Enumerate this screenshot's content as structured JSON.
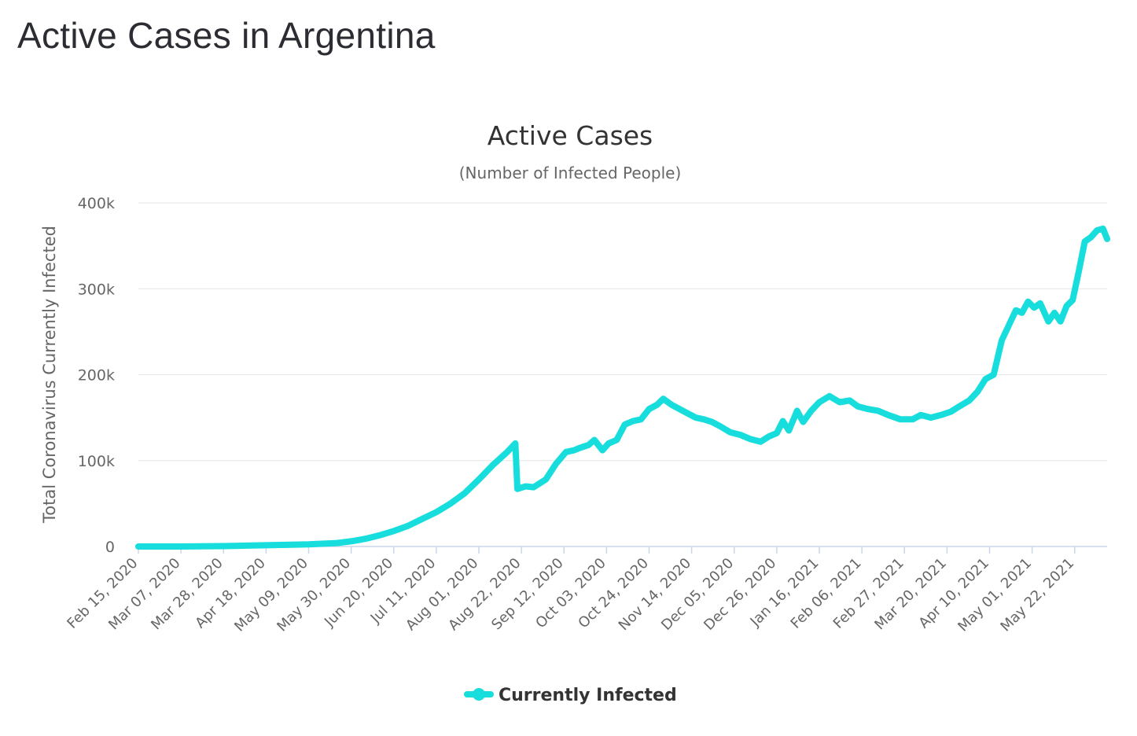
{
  "page": {
    "title": "Active Cases in Argentina"
  },
  "colors": {
    "series": "#17dddd",
    "grid": "#e6e6e6",
    "axis_line": "#ccd6eb",
    "text": "#333333",
    "muted_text": "#666666"
  },
  "chart_data": {
    "type": "line",
    "title": "Active Cases",
    "subtitle": "(Number of Infected People)",
    "xlabel": "",
    "ylabel": "Total Coronavirus Currently Infected",
    "ylim": [
      0,
      400000
    ],
    "y_ticks": [
      {
        "value": 0,
        "label": "0"
      },
      {
        "value": 100000,
        "label": "100k"
      },
      {
        "value": 200000,
        "label": "200k"
      },
      {
        "value": 300000,
        "label": "300k"
      },
      {
        "value": 400000,
        "label": "400k"
      }
    ],
    "x_start": "2020-02-15",
    "x_end": "2021-06-07",
    "x_tick_labels": [
      "Feb 15, 2020",
      "Mar 07, 2020",
      "Mar 28, 2020",
      "Apr 18, 2020",
      "May 09, 2020",
      "May 30, 2020",
      "Jun 20, 2020",
      "Jul 11, 2020",
      "Aug 01, 2020",
      "Aug 22, 2020",
      "Sep 12, 2020",
      "Oct 03, 2020",
      "Oct 24, 2020",
      "Nov 14, 2020",
      "Dec 05, 2020",
      "Dec 26, 2020",
      "Jan 16, 2021",
      "Feb 06, 2021",
      "Feb 27, 2021",
      "Mar 20, 2021",
      "Apr 10, 2021",
      "May 01, 2021",
      "May 22, 2021"
    ],
    "grid": true,
    "legend_position": "bottom-center",
    "series": [
      {
        "name": "Currently Infected",
        "points": [
          [
            "2020-02-15",
            0
          ],
          [
            "2020-03-07",
            0
          ],
          [
            "2020-03-28",
            500
          ],
          [
            "2020-04-18",
            1500
          ],
          [
            "2020-05-09",
            2500
          ],
          [
            "2020-05-23",
            4000
          ],
          [
            "2020-05-30",
            6000
          ],
          [
            "2020-06-06",
            9000
          ],
          [
            "2020-06-13",
            13000
          ],
          [
            "2020-06-20",
            18000
          ],
          [
            "2020-06-27",
            24000
          ],
          [
            "2020-07-04",
            32000
          ],
          [
            "2020-07-11",
            40000
          ],
          [
            "2020-07-18",
            50000
          ],
          [
            "2020-07-25",
            62000
          ],
          [
            "2020-08-01",
            78000
          ],
          [
            "2020-08-08",
            95000
          ],
          [
            "2020-08-15",
            110000
          ],
          [
            "2020-08-19",
            120000
          ],
          [
            "2020-08-20",
            67000
          ],
          [
            "2020-08-24",
            70000
          ],
          [
            "2020-08-28",
            69000
          ],
          [
            "2020-09-03",
            78000
          ],
          [
            "2020-09-08",
            96000
          ],
          [
            "2020-09-13",
            110000
          ],
          [
            "2020-09-17",
            112000
          ],
          [
            "2020-09-20",
            115000
          ],
          [
            "2020-09-24",
            118000
          ],
          [
            "2020-09-27",
            124000
          ],
          [
            "2020-10-01",
            112000
          ],
          [
            "2020-10-04",
            120000
          ],
          [
            "2020-10-08",
            124000
          ],
          [
            "2020-10-12",
            142000
          ],
          [
            "2020-10-16",
            146000
          ],
          [
            "2020-10-20",
            148000
          ],
          [
            "2020-10-24",
            160000
          ],
          [
            "2020-10-28",
            165000
          ],
          [
            "2020-10-31",
            172000
          ],
          [
            "2020-11-04",
            165000
          ],
          [
            "2020-11-08",
            160000
          ],
          [
            "2020-11-12",
            155000
          ],
          [
            "2020-11-16",
            150000
          ],
          [
            "2020-11-20",
            148000
          ],
          [
            "2020-11-24",
            145000
          ],
          [
            "2020-11-28",
            140000
          ],
          [
            "2020-12-03",
            133000
          ],
          [
            "2020-12-08",
            130000
          ],
          [
            "2020-12-13",
            125000
          ],
          [
            "2020-12-18",
            122000
          ],
          [
            "2020-12-22",
            128000
          ],
          [
            "2020-12-26",
            132000
          ],
          [
            "2020-12-29",
            146000
          ],
          [
            "2021-01-01",
            135000
          ],
          [
            "2021-01-05",
            158000
          ],
          [
            "2021-01-08",
            145000
          ],
          [
            "2021-01-12",
            158000
          ],
          [
            "2021-01-16",
            168000
          ],
          [
            "2021-01-21",
            175000
          ],
          [
            "2021-01-26",
            168000
          ],
          [
            "2021-01-31",
            170000
          ],
          [
            "2021-02-04",
            163000
          ],
          [
            "2021-02-09",
            160000
          ],
          [
            "2021-02-14",
            158000
          ],
          [
            "2021-02-19",
            153000
          ],
          [
            "2021-02-25",
            148000
          ],
          [
            "2021-03-03",
            148000
          ],
          [
            "2021-03-07",
            153000
          ],
          [
            "2021-03-12",
            150000
          ],
          [
            "2021-03-17",
            153000
          ],
          [
            "2021-03-22",
            157000
          ],
          [
            "2021-03-26",
            163000
          ],
          [
            "2021-03-31",
            170000
          ],
          [
            "2021-04-04",
            180000
          ],
          [
            "2021-04-08",
            195000
          ],
          [
            "2021-04-12",
            200000
          ],
          [
            "2021-04-16",
            240000
          ],
          [
            "2021-04-20",
            260000
          ],
          [
            "2021-04-23",
            275000
          ],
          [
            "2021-04-26",
            272000
          ],
          [
            "2021-04-29",
            285000
          ],
          [
            "2021-05-02",
            278000
          ],
          [
            "2021-05-05",
            283000
          ],
          [
            "2021-05-09",
            262000
          ],
          [
            "2021-05-12",
            272000
          ],
          [
            "2021-05-15",
            262000
          ],
          [
            "2021-05-18",
            280000
          ],
          [
            "2021-05-21",
            287000
          ],
          [
            "2021-05-24",
            320000
          ],
          [
            "2021-05-27",
            355000
          ],
          [
            "2021-05-30",
            360000
          ],
          [
            "2021-06-02",
            368000
          ],
          [
            "2021-06-05",
            370000
          ],
          [
            "2021-06-07",
            358000
          ]
        ]
      }
    ]
  }
}
